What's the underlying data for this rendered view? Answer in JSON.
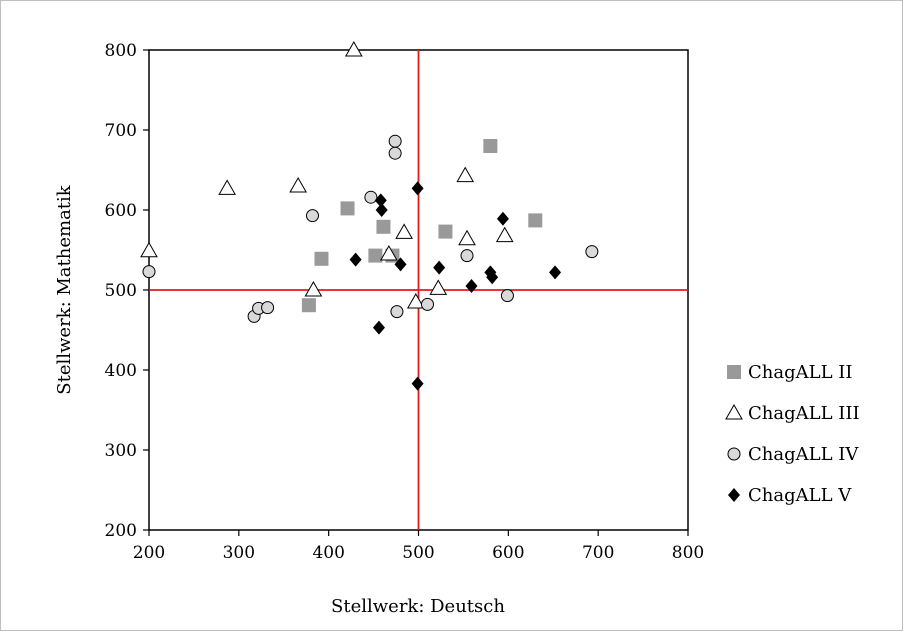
{
  "chart_data": {
    "type": "scatter",
    "title": "",
    "xlabel": "Stellwerk: Deutsch",
    "ylabel": "Stellwerk: Mathematik",
    "xlim": [
      200,
      800
    ],
    "ylim": [
      200,
      800
    ],
    "xticks": [
      200,
      300,
      400,
      500,
      600,
      700,
      800
    ],
    "yticks": [
      200,
      300,
      400,
      500,
      600,
      700,
      800
    ],
    "grid": false,
    "legend_position": "right",
    "reference_lines": {
      "x": 500,
      "y": 500,
      "color": "#e31a1c"
    },
    "series": [
      {
        "name": "ChagALL II",
        "marker": "square",
        "color": "#999999",
        "points": [
          [
            378,
            481
          ],
          [
            392,
            539
          ],
          [
            421,
            602
          ],
          [
            452,
            543
          ],
          [
            461,
            579
          ],
          [
            471,
            543
          ],
          [
            530,
            573
          ],
          [
            580,
            680
          ],
          [
            630,
            587
          ]
        ]
      },
      {
        "name": "ChagALL III",
        "marker": "triangle",
        "color": "#ffffff",
        "points": [
          [
            200,
            549
          ],
          [
            287,
            627
          ],
          [
            366,
            630
          ],
          [
            383,
            500
          ],
          [
            428,
            800
          ],
          [
            467,
            545
          ],
          [
            484,
            572
          ],
          [
            497,
            485
          ],
          [
            522,
            502
          ],
          [
            552,
            643
          ],
          [
            554,
            564
          ],
          [
            596,
            568
          ]
        ]
      },
      {
        "name": "ChagALL IV",
        "marker": "circle",
        "color": "#d9d9d9",
        "points": [
          [
            200,
            523
          ],
          [
            317,
            467
          ],
          [
            322,
            477
          ],
          [
            332,
            478
          ],
          [
            382,
            593
          ],
          [
            447,
            616
          ],
          [
            474,
            686
          ],
          [
            474,
            671
          ],
          [
            476,
            473
          ],
          [
            510,
            482
          ],
          [
            554,
            543
          ],
          [
            599,
            493
          ],
          [
            693,
            548
          ]
        ]
      },
      {
        "name": "ChagALL V",
        "marker": "diamond",
        "color": "#000000",
        "points": [
          [
            430,
            538
          ],
          [
            456,
            453
          ],
          [
            458,
            612
          ],
          [
            459,
            600
          ],
          [
            480,
            532
          ],
          [
            499,
            627
          ],
          [
            499,
            383
          ],
          [
            523,
            528
          ],
          [
            559,
            505
          ],
          [
            580,
            522
          ],
          [
            582,
            516
          ],
          [
            594,
            589
          ],
          [
            652,
            522
          ]
        ]
      }
    ]
  }
}
